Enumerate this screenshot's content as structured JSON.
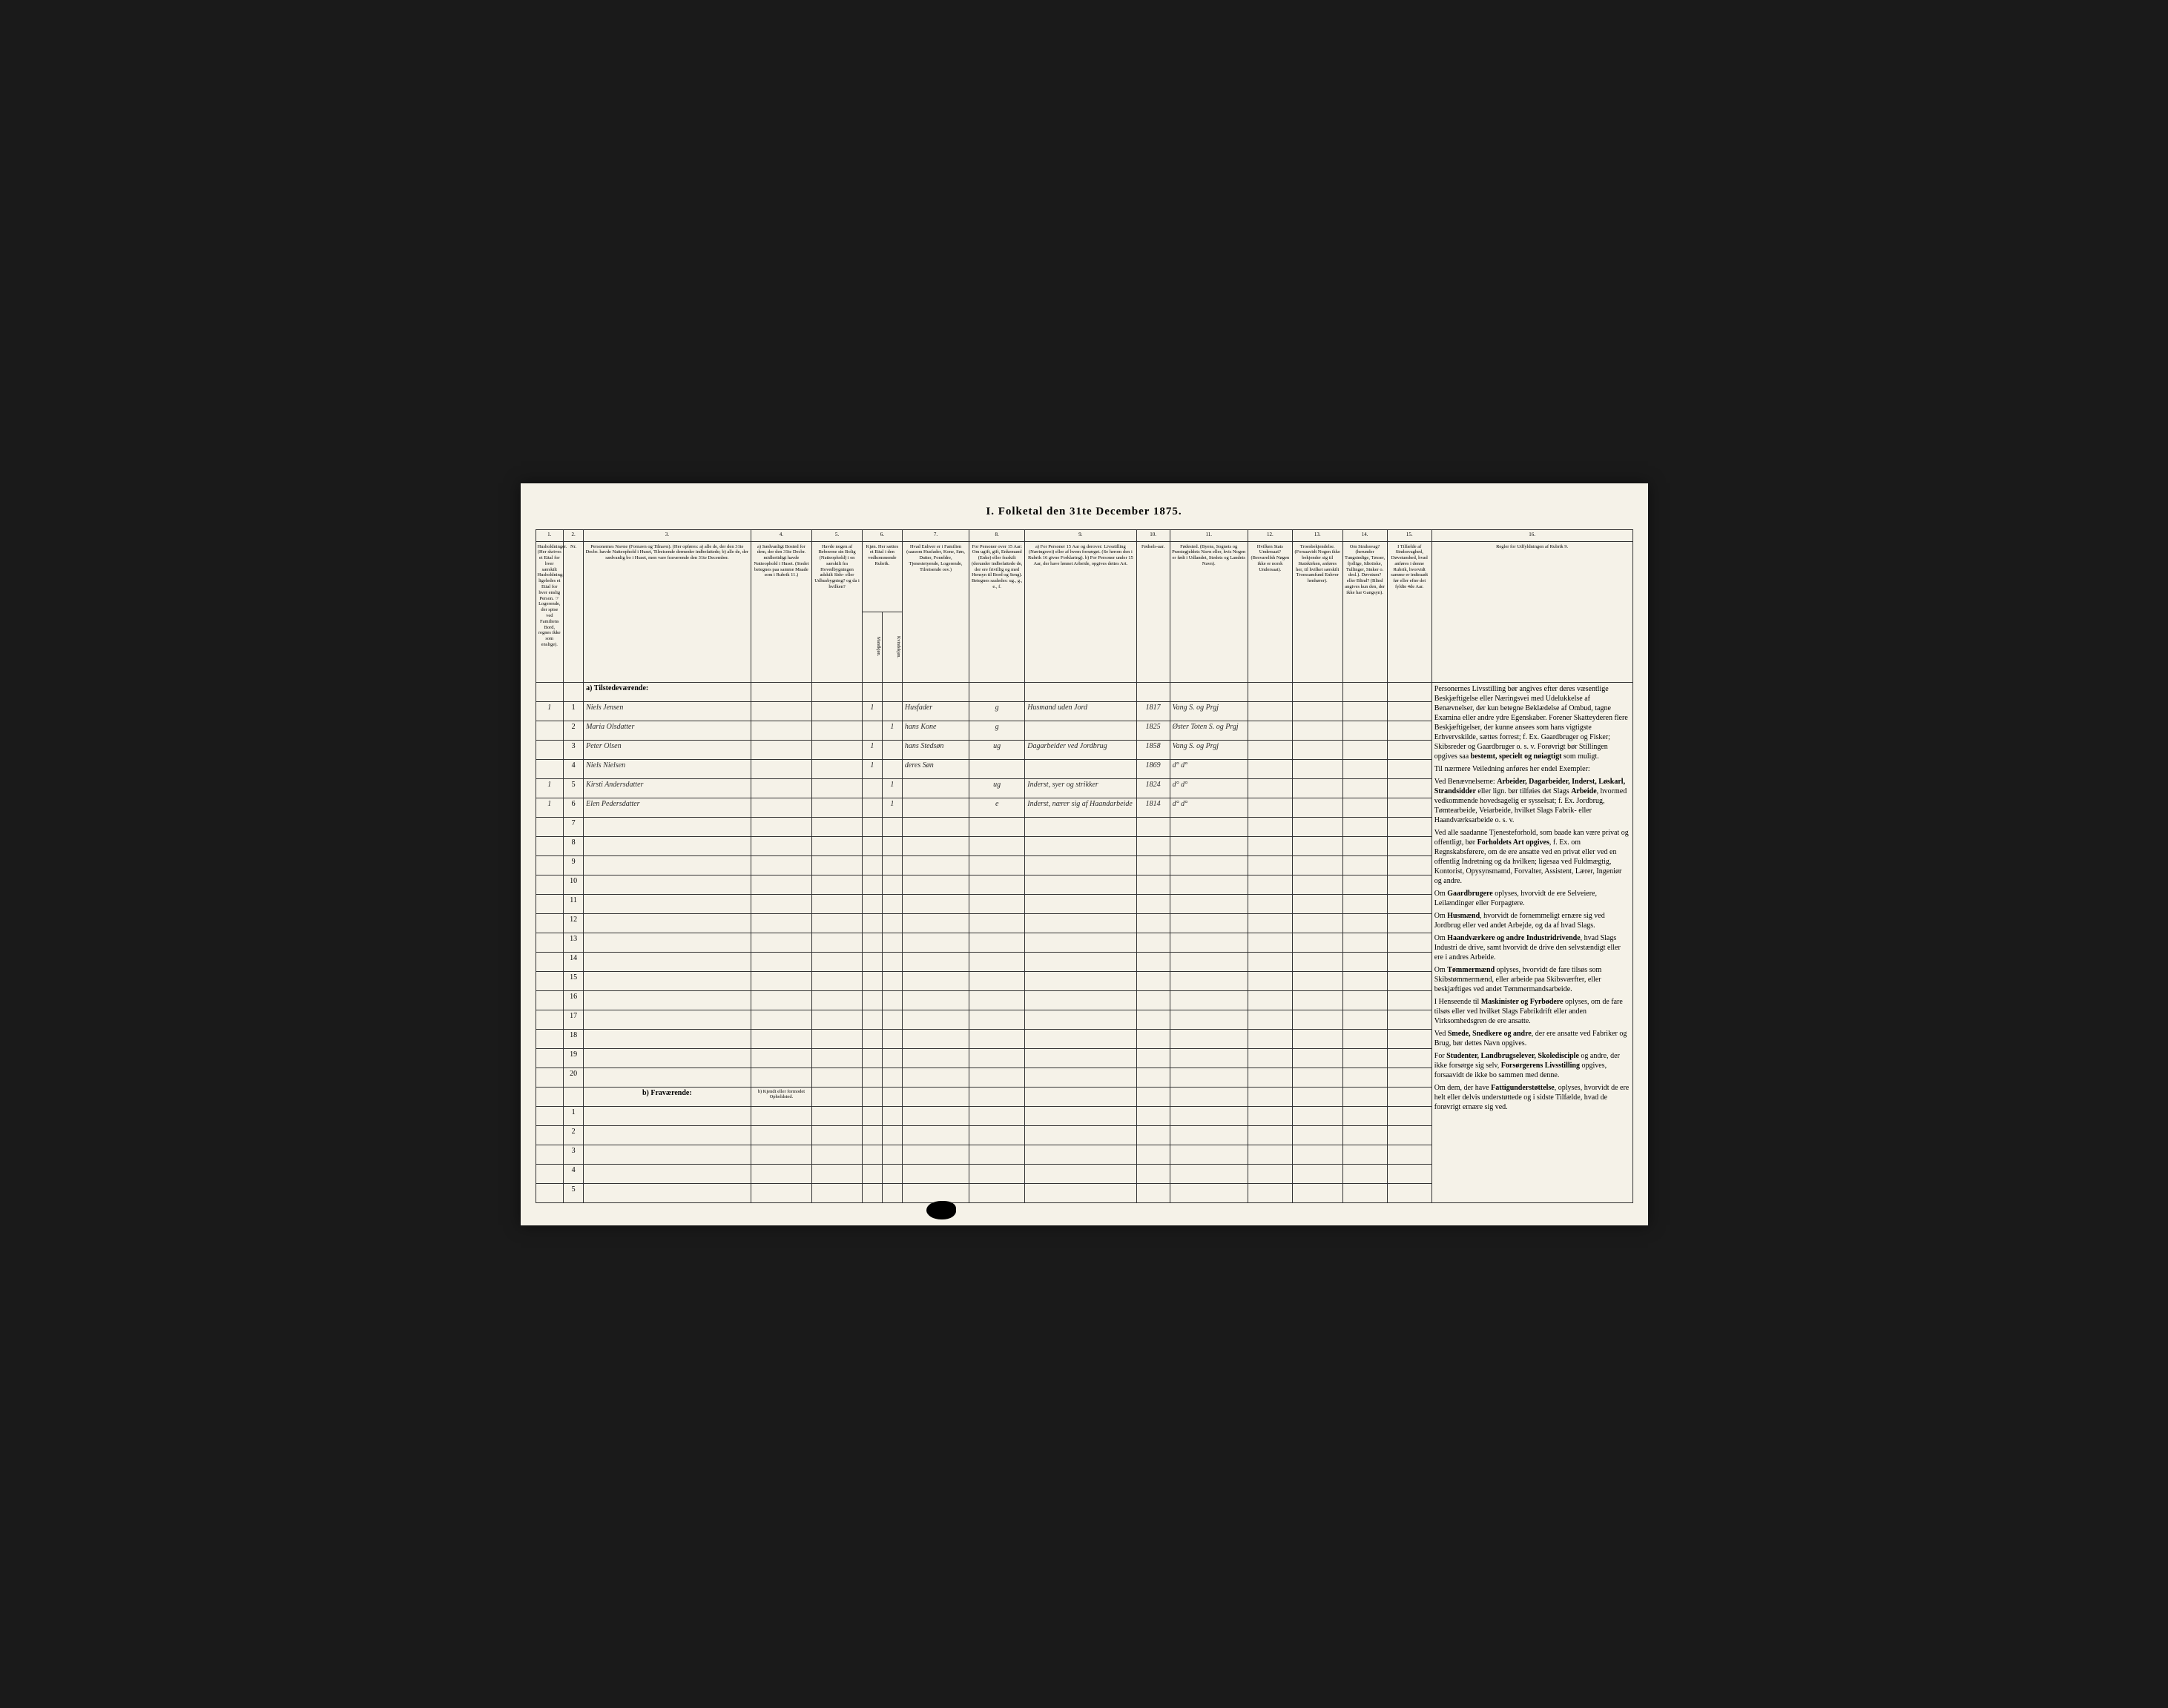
{
  "title": "I. Folketal den 31te December 1875.",
  "columns": {
    "numbers": [
      "1.",
      "2.",
      "3.",
      "4.",
      "5.",
      "6.",
      "7.",
      "8.",
      "9.",
      "10.",
      "11.",
      "12.",
      "13.",
      "14.",
      "15.",
      "16."
    ],
    "headers": {
      "c1": "Husholdninger. (Her skrives et Ettal for hver særskilt Husholdning; ligeledes et Ettal for hver enslig Person. ☞ Logerende, der spise ved Familiens Bord, regnes ikke som enslige).",
      "c2": "Nr.",
      "c3": "Personernes Navne (Fornavn og Tilnavn). (Her opføres: a) alle de, der den 31te Decbr. havde Natteophold i Huset, Tilreisende dermeder indbefattede; b) alle de, der sædvanlig bo i Huset, men vare fraværende den 31te December.",
      "c4": "a) Sædvanligt Bosted for dem, der den 31te Decbr. midlertidigt havde Natteophold i Huset. (Stedet betegnes paa samme Maade som i Rubrik 11.)",
      "c5": "Havde nogen af Beboerne sin Bolig (Natteophold) i en særskilt fra Hovedbygningen adskilt Side- eller Udhusbygning? og da i hvilken?",
      "c6": "Kjøn. Her sættes et Ettal i den vedkommende Rubrik.",
      "c6a": "Mandkjøn.",
      "c6b": "Kvindekjøn.",
      "c7": "Hvad Enhver er i Familien (saasom Husfader, Kone, Søn, Datter, Forældre, Tjenestetyende, Logerende, Tilreisende osv.)",
      "c8": "For Personer over 15 Aar: Om ugift, gift, Enkemand (Enke) eller fraskilt (derunder indbefattede de, der ere frivillig og med Hensyn til Bord og Seng). Betegnes saaledes: ug., g., e., f.",
      "c9": "a) For Personer 15 Aar og derover: Livsstilling (Næringsvei) eller af hvem forsørget. (Se herom den i Rubrik 16 givne Forklaring). b) For Personer under 15 Aar, der have lønnet Arbeide, opgives dettes Art.",
      "c10": "Fødsels-aar.",
      "c11": "Fødested. (Byens, Sognets og Præstegjeldets Navn eller, hvis Nogen er født i Udlandet, Stedets og Landets Navn).",
      "c12": "Hvilken Stats Undersaat? (Besvarelfsh Nøgen ikke er norsk Undersaat).",
      "c13": "Troesbekjendelse. (Forsaavidt Nogen ikke bekjender sig til Statskirken, anføres her, til hvilket særskilt Troessamfund Enhver henhører).",
      "c14": "Om Sindssvag? (herunder Tungsindige, Tøsser, fjollige, Idiotiske, Tullinger, Sinker o. desl.). Døvstum? eller Blind? (Blind angives kun den, der ikke har Gangsyn).",
      "c15": "I Tilfælde af Sindssvaghed, Døvstumhed, hvad anføres i denne Rubrik, hvorvidt samme er indtraadt før eller efter det fyldte 4de Aar.",
      "c16": "Regler for Udfyldningen af Rubrik 9."
    }
  },
  "section_a": "a) Tilstedeværende:",
  "section_b": "b) Fraværende:",
  "section_b_col4": "b) Kjendt eller formodet Opholdsted.",
  "rows": [
    {
      "hh": "1",
      "num": "1",
      "name": "Niels Jensen",
      "col6a": "1",
      "col6b": "",
      "col7": "Husfader",
      "col8": "g",
      "col9": "Husmand uden Jord",
      "year": "1817",
      "place": "Vang S. og Prgj"
    },
    {
      "hh": "",
      "num": "2",
      "name": "Maria Olsdatter",
      "col6a": "",
      "col6b": "1",
      "col7": "hans Kone",
      "col8": "g",
      "col9": "",
      "year": "1825",
      "place": "Øster Toten S. og Prgj"
    },
    {
      "hh": "",
      "num": "3",
      "name": "Peter Olsen",
      "col6a": "1",
      "col6b": "",
      "col7": "hans Stedsøn",
      "col8": "ug",
      "col9": "Dagarbeider ved Jordbrug",
      "year": "1858",
      "place": "Vang S. og Prgj"
    },
    {
      "hh": "",
      "num": "4",
      "name": "Niels Nielsen",
      "col6a": "1",
      "col6b": "",
      "col7": "deres Søn",
      "col8": "",
      "col9": "",
      "year": "1869",
      "place": "d°  d°"
    },
    {
      "hh": "1",
      "num": "5",
      "name": "Kirsti Andersdatter",
      "col6a": "",
      "col6b": "1",
      "col7": "",
      "col8": "ug",
      "col9": "Inderst, syer og strikker",
      "year": "1824",
      "place": "d°  d°"
    },
    {
      "hh": "1",
      "num": "6",
      "name": "Elen Pedersdatter",
      "col6a": "",
      "col6b": "1",
      "col7": "",
      "col8": "e",
      "col9": "Inderst, nærer sig af Haandarbeide",
      "year": "1814",
      "place": "d°  d°"
    }
  ],
  "instructions_text": "Personernes Livsstilling bør angives efter deres væsentlige Beskjæftigelse eller Næringsvei med Udelukkelse af Benævnelser, der kun betegne Beklædelse af Ombud, tagne Examina eller andre ydre Egenskaber. Forener Skatteyderen flere Beskjæftigelser, der kunne ansees som hans vigtigste Erhvervskilde, sættes forrest; f. Ex. Gaardbruger og Fisker; Skibsreder og Gaardbruger o. s. v. Forøvrigt bør Stillingen opgives saa bestemt, specielt og nøiagtigt som muligt.\n\nTil nærmere Veiledning anføres her endel Exempler:\n\nVed Benævnelserne: Arbeider, Dagarbeider, Inderst, Løskarl, Strandsidder eller lign. bør tilføies det Slags Arbeide, hvormed vedkommende hovedsagelig er sysselsat; f. Ex. Jordbrug, Tømtearbeide, Veiarbeide, hvilket Slags Fabrik- eller Haandværksarbeide o. s. v.\n\nVed alle saadanne Tjenesteforhold, som baade kan være privat og offentligt, bør Forholdets Art opgives, f. Ex. om Regnskabsførere, om de ere ansatte ved en privat eller ved en offentlig Indretning og da hvilken; ligesaa ved Fuldmægtig, Kontorist, Opysynsmamd, Forvalter, Assistent, Lærer, Ingeniør og andre.\n\nOm Gaardbrugere oplyses, hvorvidt de ere Selveiere, Leilændinger eller Forpagtere.\n\nOm Husmænd, hvorvidt de fornemmeligt ernære sig ved Jordbrug eller ved andet Arbejde, og da af hvad Slags.\n\nOm Haandværkere og andre Industridrivende, hvad Slags Industri de drive, samt hvorvidt de drive den selvstændigt eller ere i andres Arbeide.\n\nOm Tømmermænd oplyses, hvorvidt de fare tilsøs som Skibstømmermænd, eller arbeide paa Skibsværfter, eller beskjæftiges ved andet Tømmermandsarbeide.\n\nI Henseende til Maskinister og Fyrbødere oplyses, om de fare tilsøs eller ved hvilket Slags Fabrikdrift eller anden Virksomhedsgren de ere ansatte.\n\nVed Smede, Snedkere og andre, der ere ansatte ved Fabriker og Brug, bør dettes Navn opgives.\n\nFor Studenter, Landbrugselever, Skoledisciple og andre, der ikke forsørge sig selv, Forsørgerens Livsstilling opgives, forsaavidt de ikke bo sammen med denne.\n\nOm dem, der have Fattigunderstøttelse, oplyses, hvorvidt de ere helt eller delvis understøttede og i sidste Tilfælde, hvad de forøvrigt ernære sig ved.",
  "colors": {
    "page_bg": "#f5f2e8",
    "frame_bg": "#1a1a1a",
    "border": "#333333",
    "handwriting": "#2a2a2a"
  }
}
